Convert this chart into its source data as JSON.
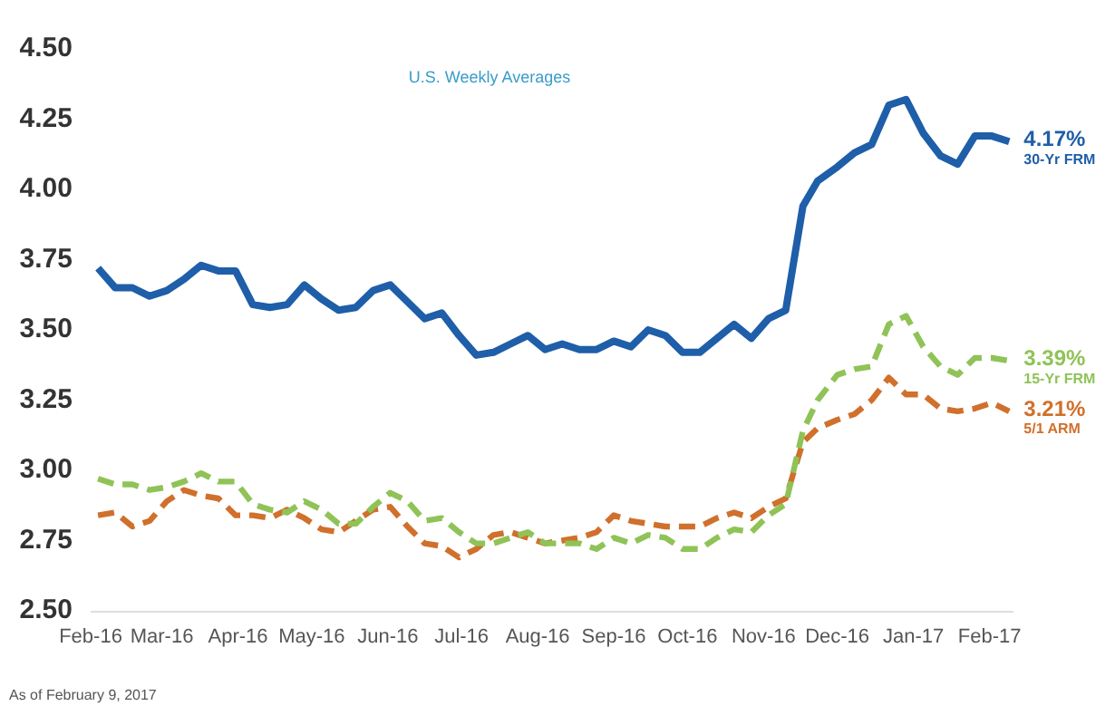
{
  "chart_data": {
    "type": "line",
    "subtitle": "U.S. Weekly Averages",
    "annotations": [
      "As of February 9, 2017"
    ],
    "x": [
      "2016-02-04",
      "2016-02-11",
      "2016-02-18",
      "2016-02-25",
      "2016-03-03",
      "2016-03-10",
      "2016-03-17",
      "2016-03-24",
      "2016-03-31",
      "2016-04-07",
      "2016-04-14",
      "2016-04-21",
      "2016-04-28",
      "2016-05-05",
      "2016-05-12",
      "2016-05-19",
      "2016-05-26",
      "2016-06-02",
      "2016-06-09",
      "2016-06-16",
      "2016-06-23",
      "2016-06-30",
      "2016-07-07",
      "2016-07-14",
      "2016-07-21",
      "2016-07-28",
      "2016-08-04",
      "2016-08-11",
      "2016-08-18",
      "2016-08-25",
      "2016-09-01",
      "2016-09-08",
      "2016-09-15",
      "2016-09-22",
      "2016-09-29",
      "2016-10-06",
      "2016-10-13",
      "2016-10-20",
      "2016-10-27",
      "2016-11-03",
      "2016-11-10",
      "2016-11-17",
      "2016-11-23",
      "2016-12-01",
      "2016-12-08",
      "2016-12-15",
      "2016-12-22",
      "2016-12-29",
      "2017-01-05",
      "2017-01-12",
      "2017-01-19",
      "2017-01-26",
      "2017-02-02",
      "2017-02-09"
    ],
    "series": [
      {
        "name": "30-Yr FRM",
        "color": "#1f5ea8",
        "line_style": "solid",
        "values": [
          3.72,
          3.65,
          3.65,
          3.62,
          3.64,
          3.68,
          3.73,
          3.71,
          3.71,
          3.59,
          3.58,
          3.59,
          3.66,
          3.61,
          3.57,
          3.58,
          3.64,
          3.66,
          3.6,
          3.54,
          3.56,
          3.48,
          3.41,
          3.42,
          3.45,
          3.48,
          3.43,
          3.45,
          3.43,
          3.43,
          3.46,
          3.44,
          3.5,
          3.48,
          3.42,
          3.42,
          3.47,
          3.52,
          3.47,
          3.54,
          3.57,
          3.94,
          4.03,
          4.08,
          4.13,
          4.16,
          4.3,
          4.32,
          4.2,
          4.12,
          4.09,
          4.19,
          4.19,
          4.17
        ],
        "value_labels": [
          null,
          null,
          null,
          null,
          null,
          null,
          null,
          null,
          null,
          null,
          null,
          null,
          null,
          null,
          null,
          null,
          null,
          null,
          null,
          null,
          null,
          null,
          null,
          null,
          null,
          null,
          null,
          null,
          null,
          null,
          null,
          null,
          null,
          null,
          null,
          null,
          null,
          null,
          null,
          null,
          null,
          null,
          null,
          null,
          null,
          null,
          null,
          null,
          null,
          null,
          null,
          null,
          null,
          "4.17%"
        ]
      },
      {
        "name": "15-Yr FRM",
        "color": "#8fc357",
        "line_style": "dashed",
        "values": [
          2.97,
          2.95,
          2.95,
          2.93,
          2.94,
          2.96,
          2.99,
          2.96,
          2.96,
          2.88,
          2.86,
          2.85,
          2.89,
          2.86,
          2.81,
          2.81,
          2.87,
          2.92,
          2.89,
          2.82,
          2.83,
          2.78,
          2.74,
          2.74,
          2.76,
          2.78,
          2.74,
          2.74,
          2.74,
          2.72,
          2.76,
          2.74,
          2.77,
          2.76,
          2.72,
          2.72,
          2.76,
          2.79,
          2.78,
          2.84,
          2.88,
          3.14,
          3.25,
          3.34,
          3.36,
          3.37,
          3.52,
          3.55,
          3.44,
          3.37,
          3.34,
          3.4,
          3.4,
          3.39
        ],
        "value_labels": [
          null,
          null,
          null,
          null,
          null,
          null,
          null,
          null,
          null,
          null,
          null,
          null,
          null,
          null,
          null,
          null,
          null,
          null,
          null,
          null,
          null,
          null,
          null,
          null,
          null,
          null,
          null,
          null,
          null,
          null,
          null,
          null,
          null,
          null,
          null,
          null,
          null,
          null,
          null,
          null,
          null,
          null,
          null,
          null,
          null,
          null,
          null,
          null,
          null,
          null,
          null,
          null,
          null,
          "3.39%"
        ]
      },
      {
        "name": "5/1 ARM",
        "color": "#d0702c",
        "line_style": "dashed",
        "values": [
          2.84,
          2.85,
          2.8,
          2.82,
          2.89,
          2.93,
          2.91,
          2.9,
          2.84,
          2.84,
          2.83,
          2.86,
          2.83,
          2.79,
          2.78,
          2.82,
          2.86,
          2.87,
          2.8,
          2.74,
          2.73,
          2.69,
          2.72,
          2.77,
          2.78,
          2.76,
          2.74,
          2.75,
          2.76,
          2.78,
          2.84,
          2.82,
          2.81,
          2.8,
          2.8,
          2.8,
          2.83,
          2.85,
          2.83,
          2.87,
          2.9,
          3.1,
          3.15,
          3.18,
          3.2,
          3.25,
          3.33,
          3.27,
          3.27,
          3.22,
          3.21,
          3.22,
          3.24,
          3.21
        ],
        "value_labels": [
          null,
          null,
          null,
          null,
          null,
          null,
          null,
          null,
          null,
          null,
          null,
          null,
          null,
          null,
          null,
          null,
          null,
          null,
          null,
          null,
          null,
          null,
          null,
          null,
          null,
          null,
          null,
          null,
          null,
          null,
          null,
          null,
          null,
          null,
          null,
          null,
          null,
          null,
          null,
          null,
          null,
          null,
          null,
          null,
          null,
          null,
          null,
          null,
          null,
          null,
          null,
          null,
          null,
          "3.21%"
        ]
      }
    ],
    "xlim": [
      "2016-02-01",
      "2017-02-10"
    ],
    "xticks": [
      {
        "value": "2016-02-01",
        "label": "Feb-16"
      },
      {
        "value": "2016-03-01",
        "label": "Mar-16"
      },
      {
        "value": "2016-04-01",
        "label": "Apr-16"
      },
      {
        "value": "2016-05-01",
        "label": "May-16"
      },
      {
        "value": "2016-06-01",
        "label": "Jun-16"
      },
      {
        "value": "2016-07-01",
        "label": "Jul-16"
      },
      {
        "value": "2016-08-01",
        "label": "Aug-16"
      },
      {
        "value": "2016-09-01",
        "label": "Sep-16"
      },
      {
        "value": "2016-10-01",
        "label": "Oct-16"
      },
      {
        "value": "2016-11-01",
        "label": "Nov-16"
      },
      {
        "value": "2016-12-01",
        "label": "Dec-16"
      },
      {
        "value": "2017-01-01",
        "label": "Jan-17"
      },
      {
        "value": "2017-02-01",
        "label": "Feb-17"
      }
    ],
    "ylim": [
      2.5,
      4.5
    ],
    "yticks": [
      {
        "value": 2.5,
        "label": "2.50"
      },
      2.75,
      {
        "value": 3,
        "label": "3.00"
      },
      3.25,
      {
        "value": 3.5,
        "label": "3.50"
      },
      3.75,
      {
        "value": 4,
        "label": "4.00"
      },
      4.25,
      {
        "value": 4.5,
        "label": "4.50"
      }
    ],
    "marker": "none"
  }
}
